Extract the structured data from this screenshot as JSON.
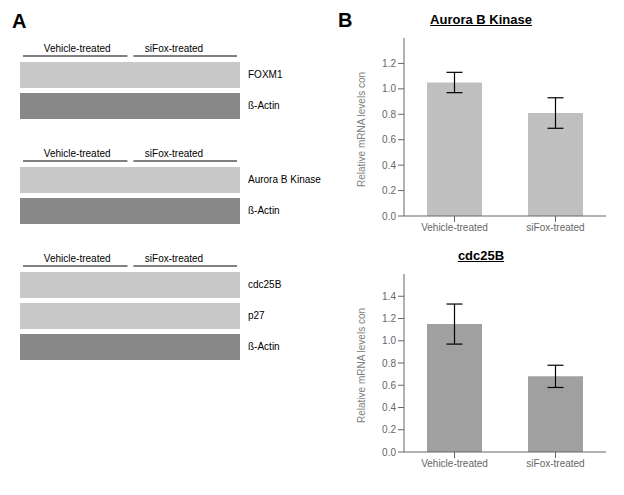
{
  "chart_data": [
    {
      "type": "blot",
      "annotations": [
        "A"
      ],
      "categories": [
        "Vehicle-treated",
        "siFox-treated"
      ],
      "series": [
        {
          "name": "FOXM1",
          "color": "#c8c8c8"
        },
        {
          "name": "ß-Actin",
          "color": "#888888"
        }
      ]
    },
    {
      "type": "blot",
      "categories": [
        "Vehicle-treated",
        "siFox-treated"
      ],
      "series": [
        {
          "name": "Aurora B Kinase",
          "color": "#c8c8c8"
        },
        {
          "name": "ß-Actin",
          "color": "#888888"
        }
      ]
    },
    {
      "type": "blot",
      "categories": [
        "Vehicle-treated",
        "siFox-treated"
      ],
      "series": [
        {
          "name": "cdc25B",
          "color": "#c8c8c8"
        },
        {
          "name": "p27",
          "color": "#c8c8c8"
        },
        {
          "name": "ß-Actin",
          "color": "#888888"
        }
      ]
    },
    {
      "type": "bar",
      "annotations": [
        "B"
      ],
      "title": "Aurora B Kinase",
      "categories": [
        "Vehicle-treated",
        "siFox-treated"
      ],
      "values": [
        1.05,
        0.81
      ],
      "errors": [
        0.08,
        0.12
      ],
      "ylabel": "Relative mRNA levels con",
      "ylim": [
        0,
        1.4
      ],
      "yticks": [
        {
          "value": 0,
          "label": "0.0"
        },
        0.2,
        0.4,
        0.6,
        0.8,
        {
          "value": 1.0,
          "label": "1.0"
        },
        1.2
      ],
      "color": "#c0c0c0"
    },
    {
      "type": "bar",
      "title": "cdc25B",
      "categories": [
        "Vehicle-treated",
        "siFox-treated"
      ],
      "values": [
        1.15,
        0.68
      ],
      "errors": [
        0.18,
        0.1
      ],
      "ylabel": "Relative mRNA levels con",
      "ylim": [
        0,
        1.6
      ],
      "yticks": [
        {
          "value": 0,
          "label": "0.0"
        },
        0.2,
        0.4,
        0.6,
        0.8,
        {
          "value": 1.0,
          "label": "1.0"
        },
        1.2,
        1.4
      ],
      "color": "#a0a0a0"
    }
  ]
}
